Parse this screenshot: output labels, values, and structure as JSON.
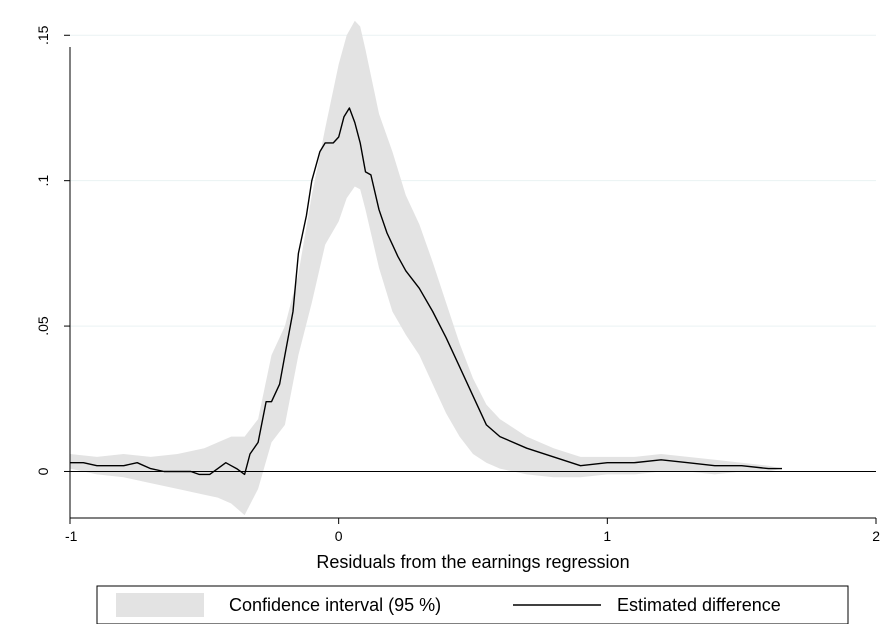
{
  "chart_data": {
    "type": "area",
    "title": "",
    "xlabel": "Residuals from the earnings regression",
    "ylabel": "",
    "xlim": [
      -1,
      2
    ],
    "ylim": [
      -0.016,
      0.158
    ],
    "x_ticks": [
      -1,
      0,
      1,
      2
    ],
    "x_tick_labels": [
      "-1",
      "0",
      "1",
      "2"
    ],
    "y_ticks": [
      0,
      0.05,
      0.1,
      0.15
    ],
    "y_tick_labels": [
      "0",
      ".05",
      ".1",
      ".15"
    ],
    "grid": "horizontal",
    "legend_position": "bottom",
    "series": [
      {
        "name": "Confidence interval (95 %)",
        "kind": "band",
        "color": "#e3e3e3",
        "x": [
          -1.0,
          -0.9,
          -0.8,
          -0.7,
          -0.6,
          -0.5,
          -0.45,
          -0.4,
          -0.35,
          -0.3,
          -0.25,
          -0.2,
          -0.15,
          -0.1,
          -0.05,
          0.0,
          0.03,
          0.06,
          0.08,
          0.1,
          0.15,
          0.2,
          0.25,
          0.3,
          0.35,
          0.4,
          0.45,
          0.5,
          0.55,
          0.6,
          0.7,
          0.8,
          0.9,
          1.0,
          1.1,
          1.2,
          1.3,
          1.4,
          1.5,
          1.6,
          1.65
        ],
        "upper": [
          0.006,
          0.005,
          0.006,
          0.005,
          0.006,
          0.008,
          0.01,
          0.012,
          0.012,
          0.018,
          0.04,
          0.05,
          0.068,
          0.095,
          0.118,
          0.14,
          0.15,
          0.155,
          0.153,
          0.145,
          0.123,
          0.11,
          0.095,
          0.085,
          0.072,
          0.058,
          0.044,
          0.032,
          0.023,
          0.018,
          0.012,
          0.008,
          0.005,
          0.005,
          0.005,
          0.006,
          0.005,
          0.004,
          0.003,
          0.002,
          0.001
        ],
        "lower": [
          0.001,
          -0.001,
          -0.002,
          -0.004,
          -0.006,
          -0.008,
          -0.009,
          -0.011,
          -0.015,
          -0.006,
          0.01,
          0.016,
          0.04,
          0.058,
          0.078,
          0.086,
          0.094,
          0.098,
          0.097,
          0.09,
          0.07,
          0.055,
          0.047,
          0.04,
          0.03,
          0.02,
          0.012,
          0.006,
          0.003,
          0.001,
          -0.001,
          -0.002,
          -0.002,
          -0.001,
          -0.001,
          0.0,
          0.0,
          -0.001,
          0.0,
          0.0,
          0.001
        ]
      },
      {
        "name": "Estimated difference",
        "kind": "line",
        "color": "#000000",
        "x": [
          -1.0,
          -0.95,
          -0.9,
          -0.85,
          -0.8,
          -0.75,
          -0.7,
          -0.65,
          -0.6,
          -0.55,
          -0.52,
          -0.5,
          -0.48,
          -0.45,
          -0.42,
          -0.4,
          -0.38,
          -0.35,
          -0.33,
          -0.3,
          -0.27,
          -0.25,
          -0.22,
          -0.2,
          -0.17,
          -0.15,
          -0.12,
          -0.1,
          -0.07,
          -0.05,
          -0.02,
          0.0,
          0.02,
          0.04,
          0.06,
          0.08,
          0.1,
          0.12,
          0.15,
          0.18,
          0.2,
          0.22,
          0.25,
          0.3,
          0.35,
          0.4,
          0.45,
          0.5,
          0.55,
          0.6,
          0.7,
          0.8,
          0.9,
          1.0,
          1.1,
          1.2,
          1.3,
          1.4,
          1.5,
          1.6,
          1.65
        ],
        "values": [
          0.003,
          0.003,
          0.002,
          0.002,
          0.002,
          0.003,
          0.001,
          0.0,
          0.0,
          0.0,
          -0.001,
          -0.001,
          -0.001,
          0.001,
          0.003,
          0.002,
          0.001,
          -0.001,
          0.006,
          0.01,
          0.024,
          0.024,
          0.03,
          0.04,
          0.055,
          0.075,
          0.088,
          0.1,
          0.11,
          0.113,
          0.113,
          0.115,
          0.122,
          0.125,
          0.12,
          0.113,
          0.103,
          0.102,
          0.09,
          0.082,
          0.078,
          0.074,
          0.069,
          0.063,
          0.055,
          0.046,
          0.036,
          0.026,
          0.016,
          0.012,
          0.008,
          0.005,
          0.002,
          0.003,
          0.003,
          0.004,
          0.003,
          0.002,
          0.002,
          0.001,
          0.001
        ]
      }
    ],
    "reference_line": {
      "y": 0,
      "color": "#000000"
    }
  }
}
